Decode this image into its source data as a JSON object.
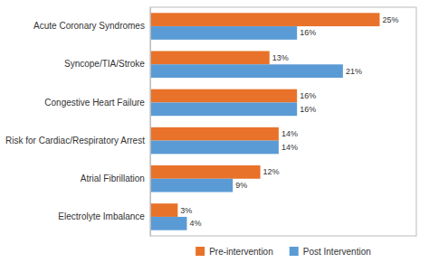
{
  "chart_data": {
    "type": "bar",
    "orientation": "horizontal",
    "categories": [
      "Electrolyte Imbalance",
      "Atrial Fibrillation",
      "Risk for Cardiac/Respiratory Arrest",
      "Congestive Heart Failure",
      "Syncope/TIA/Stroke",
      "Acute Coronary Syndromes"
    ],
    "series": [
      {
        "name": "Pre-intervention",
        "color": "#E8722A",
        "values": [
          3,
          12,
          14,
          16,
          13,
          25
        ],
        "value_labels": [
          "3%",
          "12%",
          "14%",
          "16%",
          "13%",
          "25%"
        ]
      },
      {
        "name": "Post Intervention",
        "color": "#5B9BD5",
        "values": [
          4,
          9,
          14,
          16,
          21,
          16
        ],
        "value_labels": [
          "4%",
          "9%",
          "14%",
          "16%",
          "21%",
          "16%"
        ]
      }
    ],
    "xlim": [
      0,
      29
    ],
    "grid": false,
    "legend": "bottom",
    "data_labels": true,
    "tick_labels": "y"
  }
}
